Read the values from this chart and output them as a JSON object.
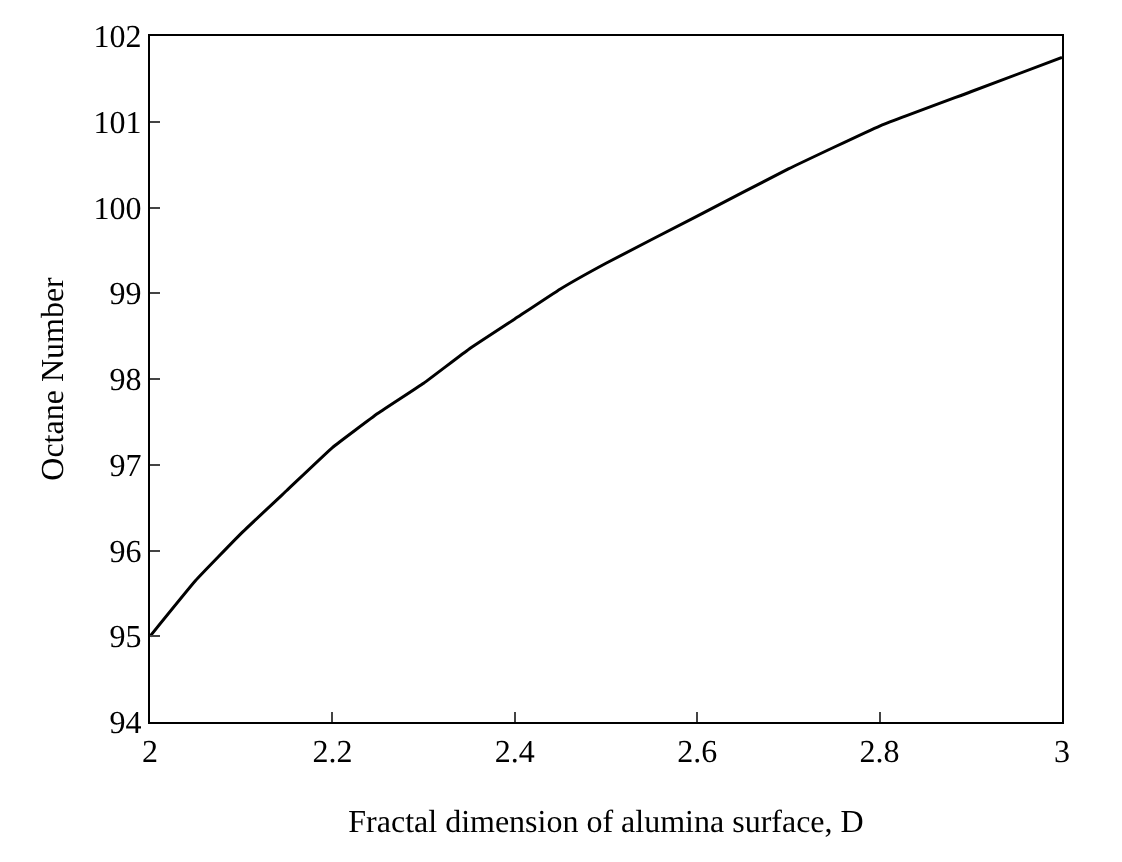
{
  "chart_data": {
    "type": "line",
    "xlabel": "Fractal dimension of alumina surface, D",
    "ylabel": "Octane Number",
    "x": [
      2,
      2.05,
      2.1,
      2.15,
      2.2,
      2.25,
      2.3,
      2.35,
      2.4,
      2.45,
      2.5,
      2.6,
      2.7,
      2.8,
      2.9,
      3
    ],
    "series": [
      {
        "color": "#000000",
        "values": [
          95.0,
          95.65,
          96.2,
          96.7,
          97.2,
          97.6,
          97.95,
          98.35,
          98.7,
          99.05,
          99.35,
          99.9,
          100.45,
          100.95,
          101.35,
          101.75
        ]
      }
    ],
    "xlim": [
      2,
      3
    ],
    "xticks": [
      2,
      2.2,
      2.4,
      2.6,
      2.8,
      3
    ],
    "ylim": [
      94,
      102
    ],
    "yticks": [
      94,
      95,
      96,
      97,
      98,
      99,
      100,
      101,
      102
    ],
    "grid": false,
    "marker": "none",
    "line_style": "solid"
  }
}
